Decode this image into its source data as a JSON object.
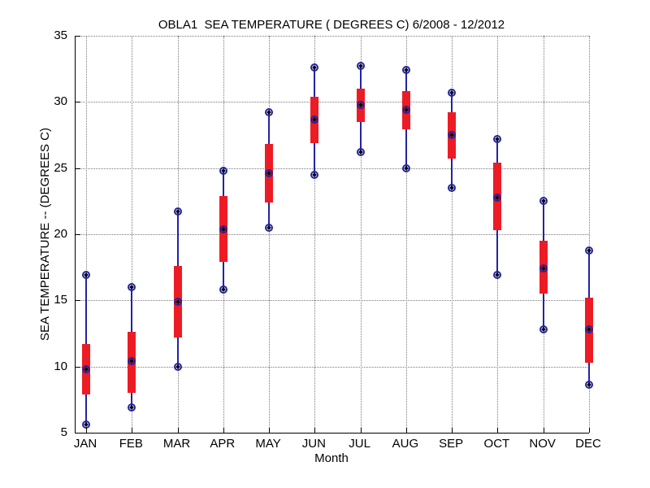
{
  "chart_data": {
    "type": "box-whisker",
    "title": "OBLA1  SEA TEMPERATURE ( DEGREES C) 6/2008 - 12/2012",
    "xlabel": "Month",
    "ylabel": "SEA TEMPERATURE -- (DEGREES C)",
    "categories": [
      "JAN",
      "FEB",
      "MAR",
      "APR",
      "MAY",
      "JUN",
      "JUL",
      "AUG",
      "SEP",
      "OCT",
      "NOV",
      "DEC"
    ],
    "series": [
      {
        "name": "min",
        "values": [
          5.6,
          6.9,
          10.0,
          15.8,
          20.5,
          24.5,
          26.2,
          25.0,
          23.5,
          16.9,
          12.8,
          8.6
        ]
      },
      {
        "name": "box_low",
        "values": [
          7.9,
          8.0,
          12.2,
          17.9,
          22.4,
          26.9,
          28.5,
          27.9,
          25.7,
          20.3,
          15.5,
          10.3
        ]
      },
      {
        "name": "mean",
        "values": [
          9.8,
          10.4,
          14.9,
          20.4,
          24.6,
          28.7,
          29.8,
          29.4,
          27.5,
          22.8,
          17.4,
          12.8
        ]
      },
      {
        "name": "box_high",
        "values": [
          11.7,
          12.6,
          17.6,
          22.9,
          26.8,
          30.4,
          31.0,
          30.8,
          29.2,
          25.4,
          19.5,
          15.2
        ]
      },
      {
        "name": "max",
        "values": [
          16.9,
          16.0,
          21.7,
          24.8,
          29.2,
          32.6,
          32.7,
          32.4,
          30.7,
          27.2,
          22.5,
          18.8
        ]
      }
    ],
    "ylim": [
      5,
      35
    ],
    "yticks": [
      5,
      10,
      15,
      20,
      25,
      30,
      35
    ],
    "grid": "dotted, horizontal at every y tick and vertical at every month",
    "legend": "none",
    "colors": {
      "box": "#ed1c24",
      "whisker": "#2323a5",
      "marker_ring": "#2323a5",
      "marker_dot": "#000000",
      "grid": "#7a7a7a",
      "axis": "#000000"
    }
  }
}
